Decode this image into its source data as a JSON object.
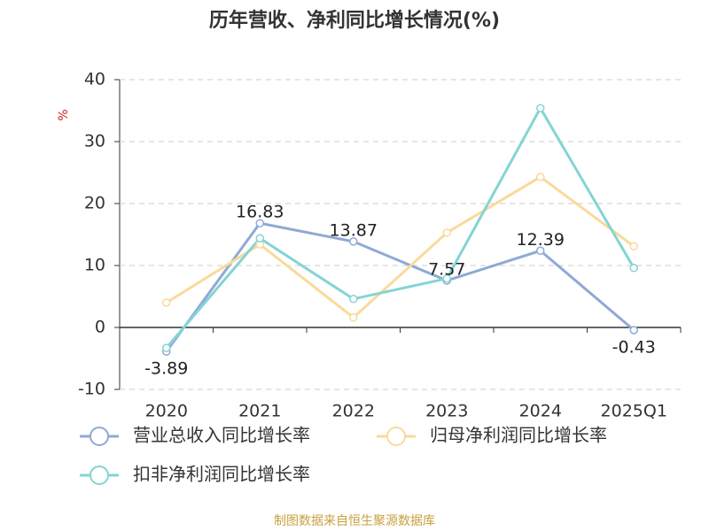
{
  "chart_data": {
    "type": "line",
    "title": "历年营收、净利同比增长情况(%)",
    "y_label": "%",
    "categories": [
      "2020",
      "2021",
      "2022",
      "2023",
      "2024",
      "2025Q1"
    ],
    "series": [
      {
        "name": "营业总收入同比增长率",
        "color": "#8fa9d6",
        "values": [
          -3.89,
          16.83,
          13.87,
          7.57,
          12.39,
          -0.43
        ],
        "show_labels": true
      },
      {
        "name": "归母净利润同比增长率",
        "color": "#fbd99b",
        "values": [
          4.0,
          13.4,
          1.6,
          15.3,
          24.3,
          13.1
        ],
        "show_labels": false
      },
      {
        "name": "扣非净利润同比增长率",
        "color": "#84d4d4",
        "values": [
          -3.3,
          14.4,
          4.6,
          7.9,
          35.4,
          9.6
        ],
        "show_labels": false
      }
    ],
    "ylim": [
      -10,
      40
    ],
    "yticks": [
      -10,
      0,
      10,
      20,
      30,
      40
    ],
    "grid": true,
    "source": "制图数据来自恒生聚源数据库"
  }
}
